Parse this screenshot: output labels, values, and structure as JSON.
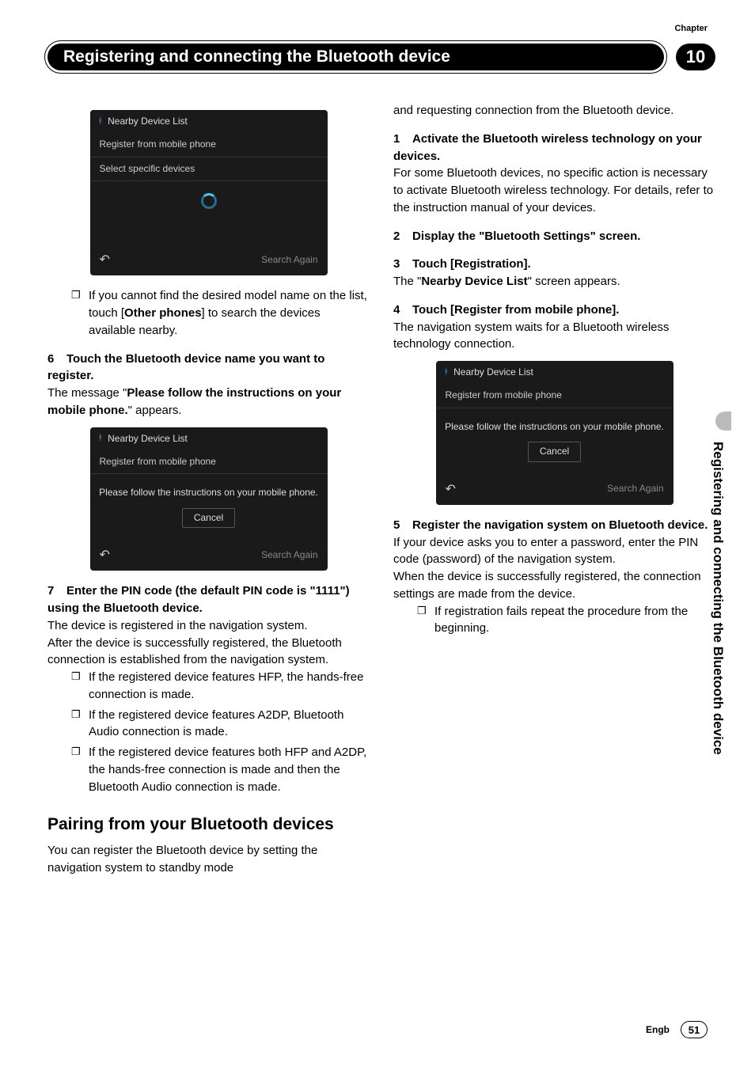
{
  "chapter_label": "Chapter",
  "chapter_title": "Registering and connecting the Bluetooth device",
  "chapter_num": "10",
  "side_tab": "Registering and connecting the Bluetooth device",
  "footer_lang": "Engb",
  "footer_page": "51",
  "left": {
    "ss1": {
      "title": "Nearby Device List",
      "row1": "Register from mobile phone",
      "row2": "Select specific devices",
      "search": "Search Again"
    },
    "note1": "If you cannot find the desired model name on the list, touch [",
    "note1_bold": "Other phones",
    "note1_after": "] to search the devices available nearby.",
    "step6_num": "6",
    "step6_head": "Touch the Bluetooth device name you want to register.",
    "step6_msg1": "The message \"",
    "step6_bold": "Please follow the instructions on your mobile phone.",
    "step6_msg2": "\" appears.",
    "ss2": {
      "title": "Nearby Device List",
      "row1": "Register from mobile phone",
      "body": "Please follow the instructions on your mobile phone.",
      "cancel": "Cancel",
      "search": "Search Again"
    },
    "step7_num": "7",
    "step7_head": "Enter the PIN code (the default PIN code is \"1111\") using the Bluetooth device.",
    "step7_p1": "The device is registered in the navigation system.",
    "step7_p2": "After the device is successfully registered, the Bluetooth connection is established from the navigation system.",
    "step7_li1": "If the registered device features HFP, the hands-free connection is made.",
    "step7_li2": "If the registered device features A2DP, Bluetooth Audio connection is made.",
    "step7_li3": "If the registered device features both HFP and A2DP, the hands-free connection is made and then the Bluetooth Audio connection is made.",
    "h2": "Pairing from your Bluetooth devices",
    "h2_p": "You can register the Bluetooth device by setting the navigation system to standby mode"
  },
  "right": {
    "cont": "and requesting connection from the Bluetooth device.",
    "step1_num": "1",
    "step1_head": "Activate the Bluetooth wireless technology on your devices.",
    "step1_p": "For some Bluetooth devices, no specific action is necessary to activate Bluetooth wireless technology. For details, refer to the instruction manual of your devices.",
    "step2_num": "2",
    "step2_head": "Display the \"Bluetooth Settings\" screen.",
    "step3_num": "3",
    "step3_head": "Touch [Registration].",
    "step3_p1": "The \"",
    "step3_bold": "Nearby Device List",
    "step3_p2": "\" screen appears.",
    "step4_num": "4",
    "step4_head": "Touch [Register from mobile phone].",
    "step4_p": "The navigation system waits for a Bluetooth wireless technology connection.",
    "ss3": {
      "title": "Nearby Device List",
      "row1": "Register from mobile phone",
      "body": "Please follow the instructions on your mobile phone.",
      "cancel": "Cancel",
      "search": "Search Again"
    },
    "step5_num": "5",
    "step5_head": "Register the navigation system on Bluetooth device.",
    "step5_p1": "If your device asks you to enter a password, enter the PIN code (password) of the navigation system.",
    "step5_p2": "When the device is successfully registered, the connection settings are made from the device.",
    "step5_li1": "If registration fails repeat the procedure from the beginning."
  }
}
